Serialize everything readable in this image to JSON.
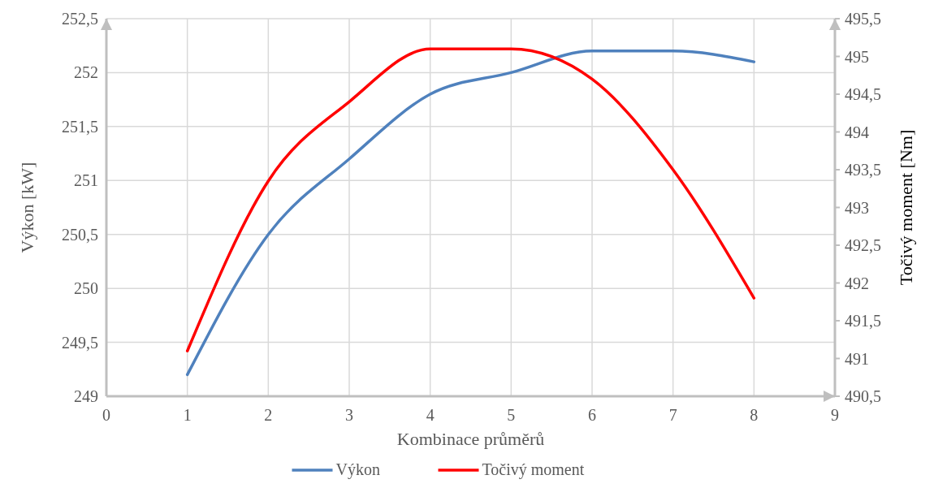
{
  "chart_data": {
    "type": "line",
    "xlabel": "Kombinace průměrů",
    "ylabel": "Výkon [kW]",
    "y2label": "Točivý moment [Nm]",
    "x": [
      1,
      2,
      3,
      4,
      5,
      6,
      7,
      8
    ],
    "series": [
      {
        "name": "Výkon",
        "color": "#4f81bd",
        "values": [
          249.2,
          250.5,
          251.2,
          251.8,
          252.0,
          252.2,
          252.2,
          252.1
        ]
      },
      {
        "name": "Točivý moment",
        "color": "#ff0000",
        "axis": "y2",
        "values": [
          491.1,
          493.35,
          494.4,
          495.1,
          495.1,
          494.7,
          493.5,
          491.8
        ]
      }
    ],
    "xlim": [
      0,
      9
    ],
    "xticks": [
      0,
      1,
      2,
      3,
      4,
      5,
      6,
      7,
      8,
      9
    ],
    "ylim": [
      249,
      252.5
    ],
    "yticks": [
      {
        "value": 249,
        "label": "249"
      },
      {
        "value": 249.5,
        "label": "249,5"
      },
      {
        "value": 250,
        "label": "250"
      },
      {
        "value": 250.5,
        "label": "250,5"
      },
      {
        "value": 251,
        "label": "251"
      },
      {
        "value": 251.5,
        "label": "251,5"
      },
      {
        "value": 252,
        "label": "252"
      },
      {
        "value": 252.5,
        "label": "252,5"
      }
    ],
    "y2lim": [
      490.5,
      495.5
    ],
    "y2ticks": [
      {
        "value": 490.5,
        "label": "490,5"
      },
      {
        "value": 491,
        "label": "491"
      },
      {
        "value": 491.5,
        "label": "491,5"
      },
      {
        "value": 492,
        "label": "492"
      },
      {
        "value": 492.5,
        "label": "492,5"
      },
      {
        "value": 493,
        "label": "493"
      },
      {
        "value": 493.5,
        "label": "493,5"
      },
      {
        "value": 494,
        "label": "494"
      },
      {
        "value": 494.5,
        "label": "494,5"
      },
      {
        "value": 495,
        "label": "495"
      },
      {
        "value": 495.5,
        "label": "495,5"
      }
    ],
    "grid": true,
    "legend": "bottom",
    "marker": "none",
    "line_style": "solid"
  }
}
